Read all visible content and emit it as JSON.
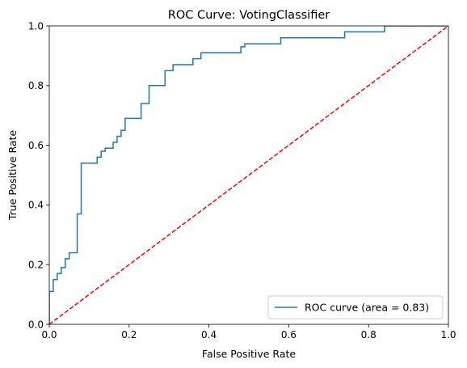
{
  "chart_data": {
    "type": "line",
    "title": "ROC Curve: VotingClassifier",
    "xlabel": "False Positive Rate",
    "ylabel": "True Positive Rate",
    "xlim": [
      0.0,
      1.0
    ],
    "ylim": [
      0.0,
      1.0
    ],
    "xticks": [
      "0.0",
      "0.2",
      "0.4",
      "0.6",
      "0.8",
      "1.0"
    ],
    "yticks": [
      "0.0",
      "0.2",
      "0.4",
      "0.6",
      "0.8",
      "1.0"
    ],
    "grid": false,
    "legend_position": "lower-right",
    "series": [
      {
        "name": "ROC curve (area = 0.83)",
        "color": "#1f77b4",
        "style": "step",
        "x": [
          0.0,
          0.0,
          0.01,
          0.01,
          0.02,
          0.02,
          0.03,
          0.03,
          0.04,
          0.04,
          0.05,
          0.05,
          0.07,
          0.07,
          0.08,
          0.08,
          0.12,
          0.12,
          0.13,
          0.13,
          0.14,
          0.14,
          0.16,
          0.16,
          0.17,
          0.17,
          0.18,
          0.18,
          0.19,
          0.19,
          0.23,
          0.23,
          0.25,
          0.25,
          0.29,
          0.29,
          0.31,
          0.31,
          0.36,
          0.36,
          0.38,
          0.38,
          0.48,
          0.48,
          0.49,
          0.49,
          0.58,
          0.58,
          0.74,
          0.74,
          0.84,
          0.84,
          1.0
        ],
        "y": [
          0.0,
          0.11,
          0.11,
          0.15,
          0.15,
          0.17,
          0.17,
          0.19,
          0.19,
          0.22,
          0.22,
          0.24,
          0.24,
          0.37,
          0.37,
          0.54,
          0.54,
          0.56,
          0.56,
          0.58,
          0.58,
          0.59,
          0.59,
          0.61,
          0.61,
          0.63,
          0.63,
          0.65,
          0.65,
          0.69,
          0.69,
          0.74,
          0.74,
          0.8,
          0.8,
          0.85,
          0.85,
          0.87,
          0.87,
          0.89,
          0.89,
          0.91,
          0.91,
          0.93,
          0.93,
          0.94,
          0.94,
          0.96,
          0.96,
          0.98,
          0.98,
          1.0,
          1.0
        ]
      },
      {
        "name": "",
        "color": "#ff0000",
        "style": "dashed",
        "x": [
          0.0,
          1.0
        ],
        "y": [
          0.0,
          1.0
        ]
      }
    ]
  }
}
